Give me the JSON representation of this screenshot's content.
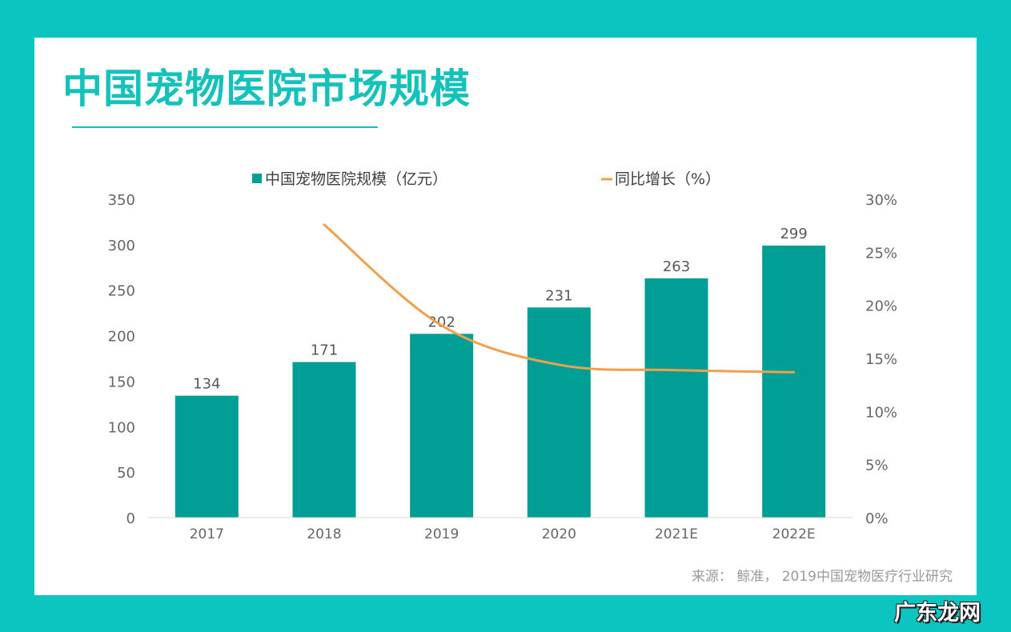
{
  "colors": {
    "frame": "#0cc5c0",
    "title": "#14c2bb",
    "bar": "#009e94",
    "line": "#f0a04b",
    "axis_text": "#666666",
    "label_text": "#595959"
  },
  "header": {
    "title": "中国宠物医院市场规模"
  },
  "footer": {
    "source": "来源： 鲸准， 2019中国宠物医疗行业研究"
  },
  "watermark": {
    "text": "广东龙网"
  },
  "chart_data": {
    "type": "bar",
    "title": "中国宠物医院市场规模",
    "categories": [
      "2017",
      "2018",
      "2019",
      "2020",
      "2021E",
      "2022E"
    ],
    "series": [
      {
        "name": "中国宠物医院规模（亿元）",
        "type": "bar",
        "axis": "left",
        "values": [
          134,
          171,
          202,
          231,
          263,
          299
        ]
      },
      {
        "name": "同比增长（%）",
        "type": "line",
        "axis": "right",
        "values": [
          null,
          27.6,
          18.1,
          14.4,
          13.9,
          13.7
        ]
      }
    ],
    "y_left": {
      "min": 0,
      "max": 350,
      "ticks": [
        "0",
        "50",
        "100",
        "150",
        "200",
        "250",
        "300",
        "350"
      ]
    },
    "y_right": {
      "min": 0,
      "max": 30,
      "ticks": [
        "0%",
        "5%",
        "10%",
        "15%",
        "20%",
        "25%",
        "30%"
      ]
    },
    "legend_position": "top",
    "grid": false
  }
}
